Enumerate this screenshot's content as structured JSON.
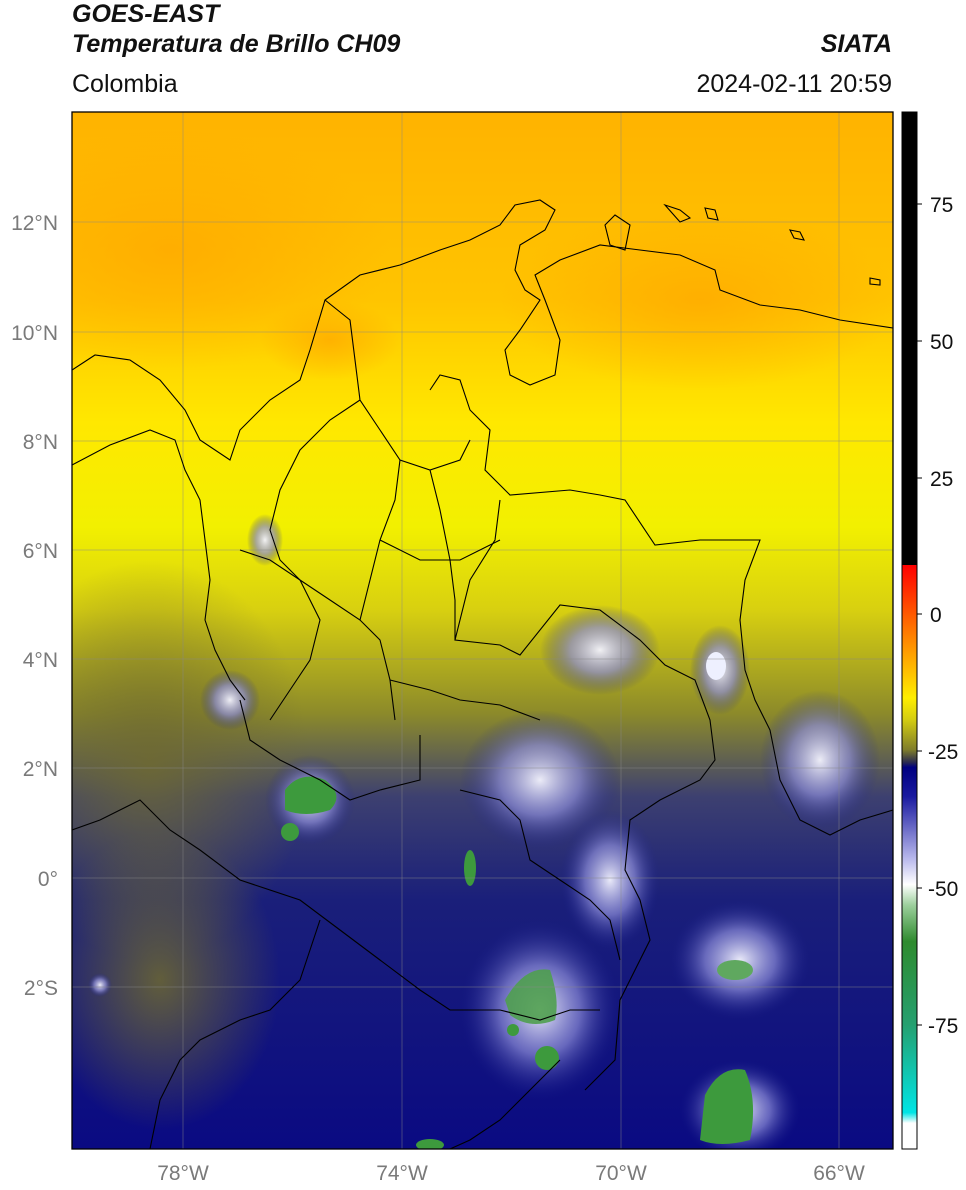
{
  "header": {
    "satellite": "GOES-EAST",
    "product": "Temperatura de Brillo CH09",
    "region": "Colombia",
    "agency": "SIATA",
    "timestamp": "2024-02-11 20:59"
  },
  "map": {
    "lat_ticks": [
      "12°N",
      "10°N",
      "8°N",
      "6°N",
      "4°N",
      "2°N",
      "0°",
      "2°S"
    ],
    "lon_ticks": [
      "78°W",
      "74°W",
      "70°W",
      "66°W"
    ],
    "lon_range": [
      -80.5,
      -65.5
    ],
    "lat_range": [
      -5.2,
      13.9
    ]
  },
  "colorbar": {
    "ticks": [
      "75",
      "50",
      "25",
      "0",
      "-25",
      "-50",
      "-75"
    ],
    "colors": {
      "black": "#000000",
      "red": "#ff0000",
      "orange": "#ff9900",
      "yellow": "#ffff00",
      "olive": "#808010",
      "navy": "#000080",
      "white": "#ffffff",
      "green": "#2e8b2e",
      "cyan": "#00e5e5"
    }
  }
}
